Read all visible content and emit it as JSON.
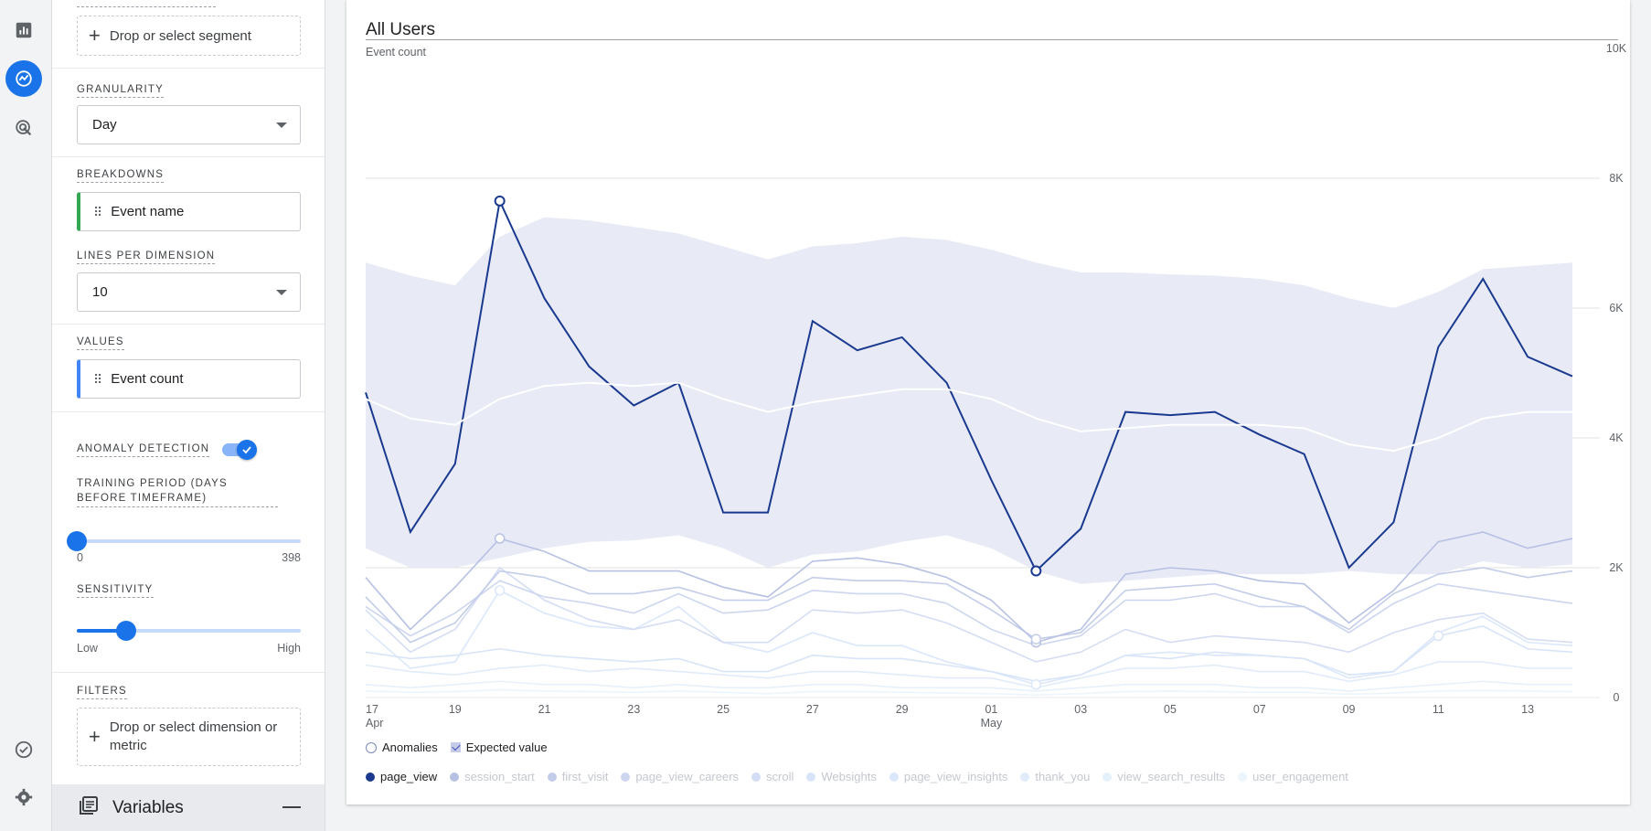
{
  "segments": {
    "drop_label": "Drop or select segment"
  },
  "granularity": {
    "label": "GRANULARITY",
    "value": "Day"
  },
  "breakdowns": {
    "label": "BREAKDOWNS",
    "item": "Event name"
  },
  "lines_per_dimension": {
    "label": "LINES PER DIMENSION",
    "value": "10"
  },
  "values_section": {
    "label": "VALUES",
    "item": "Event count"
  },
  "anomaly": {
    "label": "ANOMALY DETECTION",
    "enabled": true,
    "training_label": "TRAINING PERIOD (DAYS BEFORE TIMEFRAME)",
    "training_min": "0",
    "training_max": "398",
    "training_value": 0,
    "sensitivity_label": "SENSITIVITY",
    "sensitivity_min": "Low",
    "sensitivity_max": "High",
    "sensitivity_fraction": 0.22
  },
  "filters": {
    "label": "FILTERS",
    "drop_label": "Drop or select dimension or metric"
  },
  "variables": {
    "label": "Variables"
  },
  "colors": {
    "accent": "#1a73e8",
    "main_series": "#1a3a8f",
    "expected_band": "#e8eaf6",
    "expected_line": "#ffffff"
  },
  "chart_data": {
    "type": "line",
    "title": "All Users",
    "ylabel": "Event count",
    "ylim": [
      0,
      10000
    ],
    "y_ticks": [
      "0",
      "2K",
      "4K",
      "6K",
      "8K",
      "10K"
    ],
    "x_tick_labels": [
      {
        "day": 0,
        "label": "17",
        "sub": "Apr"
      },
      {
        "day": 2,
        "label": "19",
        "sub": ""
      },
      {
        "day": 4,
        "label": "21",
        "sub": ""
      },
      {
        "day": 6,
        "label": "23",
        "sub": ""
      },
      {
        "day": 8,
        "label": "25",
        "sub": ""
      },
      {
        "day": 10,
        "label": "27",
        "sub": ""
      },
      {
        "day": 12,
        "label": "29",
        "sub": ""
      },
      {
        "day": 14,
        "label": "01",
        "sub": "May"
      },
      {
        "day": 16,
        "label": "03",
        "sub": ""
      },
      {
        "day": 18,
        "label": "05",
        "sub": ""
      },
      {
        "day": 20,
        "label": "07",
        "sub": ""
      },
      {
        "day": 22,
        "label": "09",
        "sub": ""
      },
      {
        "day": 24,
        "label": "11",
        "sub": ""
      },
      {
        "day": 26,
        "label": "13",
        "sub": ""
      }
    ],
    "x": [
      "Apr 17",
      "Apr 18",
      "Apr 19",
      "Apr 20",
      "Apr 21",
      "Apr 22",
      "Apr 23",
      "Apr 24",
      "Apr 25",
      "Apr 26",
      "Apr 27",
      "Apr 28",
      "Apr 29",
      "Apr 30",
      "May 01",
      "May 02",
      "May 03",
      "May 04",
      "May 05",
      "May 06",
      "May 07",
      "May 08",
      "May 09",
      "May 10",
      "May 11",
      "May 12",
      "May 13",
      "May 14"
    ],
    "expected": {
      "upper": [
        6700,
        6500,
        6350,
        7100,
        7400,
        7350,
        7250,
        7150,
        6950,
        6750,
        6950,
        7000,
        7100,
        7050,
        6900,
        6700,
        6550,
        6550,
        6520,
        6500,
        6450,
        6350,
        6150,
        6000,
        6250,
        6600,
        6650,
        6700
      ],
      "lower": [
        2300,
        2000,
        2000,
        2150,
        2300,
        2400,
        2420,
        2500,
        2300,
        2000,
        2200,
        2250,
        2400,
        2500,
        2300,
        1950,
        1750,
        1800,
        1850,
        1900,
        1900,
        1900,
        1950,
        1900,
        1900,
        2100,
        2000,
        2050
      ],
      "value": [
        4600,
        4300,
        4200,
        4600,
        4800,
        4850,
        4800,
        4850,
        4600,
        4400,
        4550,
        4650,
        4750,
        4750,
        4600,
        4300,
        4100,
        4150,
        4200,
        4200,
        4200,
        4150,
        3900,
        3800,
        4000,
        4300,
        4400,
        4400
      ]
    },
    "anomalies": [
      {
        "x": "Apr 20",
        "value": 7650
      },
      {
        "x": "May 02",
        "value": 1950
      }
    ],
    "series": [
      {
        "name": "page_view",
        "color": "#1a3a8f",
        "values": [
          4700,
          2550,
          3600,
          7650,
          6150,
          5100,
          4500,
          4850,
          2850,
          2850,
          5800,
          5350,
          5550,
          4850,
          3350,
          1950,
          2600,
          4400,
          4350,
          4400,
          4050,
          3750,
          2000,
          2700,
          5400,
          6450,
          5250,
          4950
        ]
      },
      {
        "name": "session_start",
        "color": "#b7c1e3",
        "values": [
          1850,
          1050,
          1700,
          2450,
          2250,
          1950,
          1950,
          1950,
          1700,
          1550,
          2100,
          2150,
          2050,
          1850,
          1500,
          850,
          1050,
          1900,
          2000,
          1950,
          1800,
          1750,
          1150,
          1650,
          2400,
          2550,
          2300,
          2450
        ]
      },
      {
        "name": "first_visit",
        "color": "#c3cde9",
        "values": [
          1550,
          850,
          1150,
          1950,
          1850,
          1600,
          1600,
          1700,
          1500,
          1500,
          1850,
          1800,
          1800,
          1750,
          1350,
          900,
          1000,
          1650,
          1700,
          1750,
          1550,
          1400,
          1050,
          1600,
          1900,
          2000,
          1850,
          1950
        ]
      },
      {
        "name": "page_view_careers",
        "color": "#ccd6ef",
        "values": [
          1400,
          950,
          1300,
          1800,
          1550,
          1450,
          1300,
          1600,
          1300,
          1350,
          1650,
          1600,
          1600,
          1450,
          1050,
          800,
          950,
          1500,
          1500,
          1600,
          1400,
          1400,
          1000,
          1450,
          1750,
          1650,
          1550,
          1450
        ]
      },
      {
        "name": "scroll",
        "color": "#d4ddf3",
        "values": [
          1350,
          700,
          1050,
          2000,
          1500,
          1200,
          1050,
          1200,
          850,
          850,
          1350,
          1300,
          1350,
          1150,
          850,
          550,
          700,
          1050,
          850,
          950,
          900,
          850,
          700,
          1000,
          1200,
          1300,
          900,
          850
        ]
      },
      {
        "name": "Websights",
        "color": "#d8e4f7",
        "values": [
          700,
          600,
          650,
          750,
          650,
          600,
          550,
          600,
          400,
          400,
          650,
          600,
          600,
          500,
          400,
          250,
          350,
          650,
          600,
          700,
          650,
          600,
          350,
          400,
          950,
          1100,
          750,
          700
        ]
      },
      {
        "name": "page_view_insights",
        "color": "#dbe7fb",
        "values": [
          1050,
          450,
          550,
          1650,
          1300,
          1100,
          1050,
          1400,
          850,
          700,
          1000,
          800,
          800,
          550,
          400,
          200,
          350,
          650,
          700,
          650,
          650,
          600,
          300,
          400,
          1000,
          1250,
          850,
          800
        ]
      },
      {
        "name": "thank_you",
        "color": "#e1ecfb",
        "values": [
          500,
          400,
          350,
          450,
          500,
          400,
          450,
          400,
          350,
          300,
          400,
          400,
          350,
          300,
          300,
          150,
          300,
          450,
          450,
          500,
          400,
          400,
          250,
          350,
          550,
          550,
          450,
          450
        ]
      },
      {
        "name": "view_search_results",
        "color": "#e6f1fb",
        "values": [
          200,
          150,
          200,
          250,
          200,
          200,
          150,
          200,
          150,
          150,
          200,
          200,
          150,
          150,
          150,
          100,
          150,
          200,
          200,
          200,
          150,
          150,
          100,
          150,
          200,
          250,
          200,
          200
        ]
      },
      {
        "name": "user_engagement",
        "color": "#ecf5fc",
        "values": [
          100,
          80,
          90,
          120,
          100,
          90,
          80,
          100,
          80,
          60,
          90,
          90,
          80,
          70,
          60,
          40,
          60,
          90,
          100,
          90,
          80,
          80,
          50,
          70,
          100,
          110,
          100,
          90
        ]
      }
    ],
    "legend": {
      "anomalies_label": "Anomalies",
      "expected_label": "Expected value"
    },
    "grid": true,
    "legend_placement": "bottom"
  }
}
